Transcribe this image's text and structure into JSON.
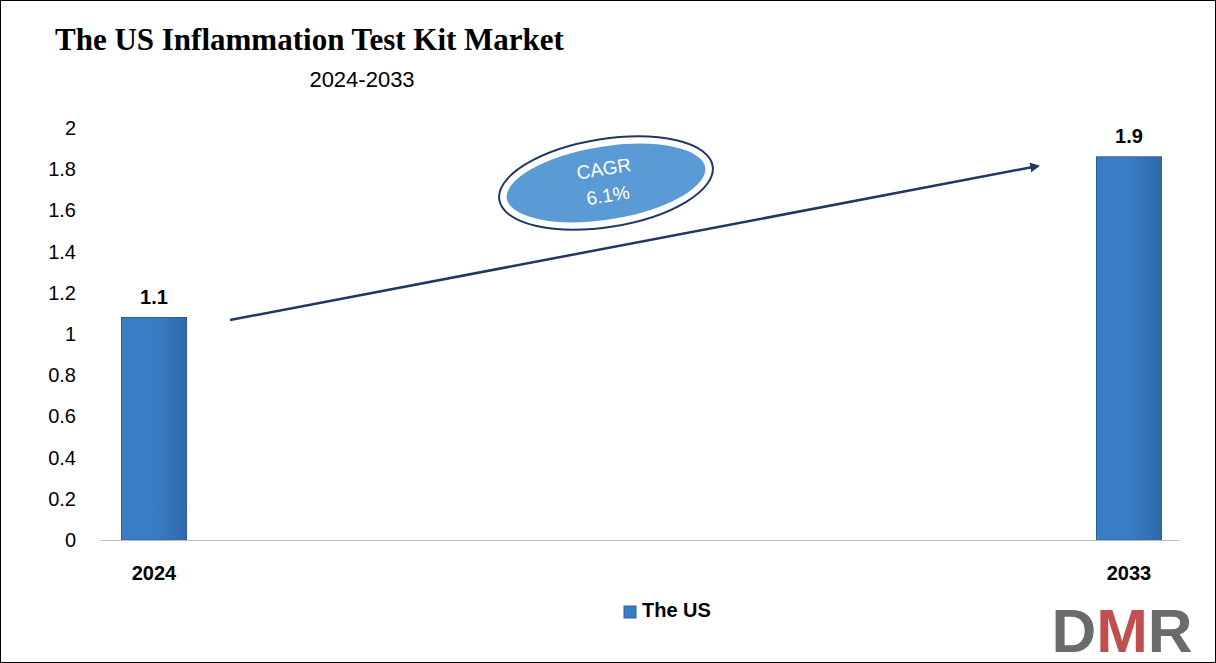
{
  "chart_data": {
    "type": "bar",
    "title": "The US Inflammation Test Kit Market",
    "subtitle": "2024-2033",
    "categories": [
      "2024",
      "2033"
    ],
    "series": [
      {
        "name": "The US",
        "color": "#3b7dc4",
        "values": [
          1.08,
          1.86
        ],
        "value_labels": [
          "1.1",
          "1.9"
        ]
      }
    ],
    "ylim": [
      0,
      2
    ],
    "yticks": [
      0,
      {
        "value": 0.2,
        "label": "0.2"
      },
      {
        "value": 0.4,
        "label": "0.4"
      },
      {
        "value": 0.6,
        "label": "0.6"
      },
      {
        "value": 0.8,
        "label": "0.8"
      },
      1,
      {
        "value": 1.2,
        "label": "1.2"
      },
      {
        "value": 1.4,
        "label": "1.4"
      },
      {
        "value": 1.6,
        "label": "1.6"
      },
      {
        "value": 1.8,
        "label": "1.8"
      },
      2
    ],
    "grid": false,
    "data_labels": true,
    "legend": "bottom",
    "annotation_lines": [
      "CAGR",
      "6.1%"
    ],
    "logo": "DMR"
  }
}
